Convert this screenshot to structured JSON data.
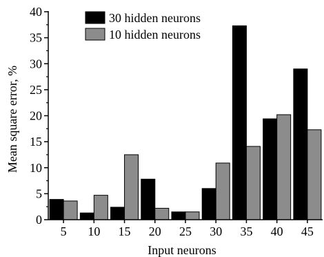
{
  "chart_data": {
    "type": "bar",
    "categories": [
      "5",
      "10",
      "15",
      "20",
      "25",
      "30",
      "35",
      "40",
      "45"
    ],
    "series": [
      {
        "name": "30 hidden neurons",
        "color": "#000000",
        "values": [
          3.9,
          1.3,
          2.4,
          7.8,
          1.5,
          6.0,
          37.3,
          19.4,
          29.0
        ]
      },
      {
        "name": "10 hidden neurons",
        "color": "#8c8c8c",
        "values": [
          3.6,
          4.7,
          12.5,
          2.2,
          1.5,
          10.9,
          14.1,
          20.2,
          17.3
        ]
      }
    ],
    "xlabel": "Input neurons",
    "ylabel": "Mean square error, %",
    "ylim": [
      0,
      40
    ],
    "yticks": [
      0,
      5,
      10,
      15,
      20,
      25,
      30,
      35,
      40
    ],
    "grid": false,
    "legend": "top-center"
  }
}
